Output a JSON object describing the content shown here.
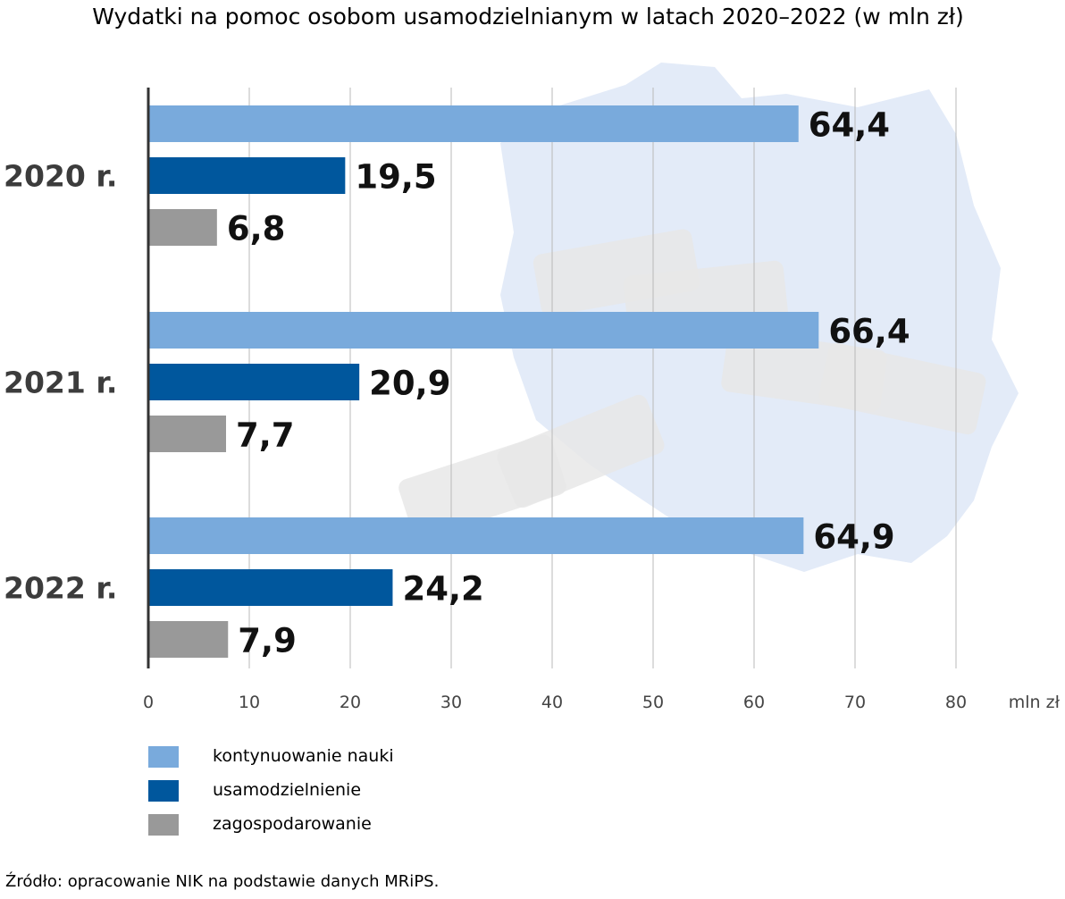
{
  "chart_data": {
    "type": "bar",
    "orientation": "horizontal",
    "title": "Wydatki na pomoc osobom usamodzielnianym w latach 2020–2022 (w mln zł)",
    "categories": [
      "2020 r.",
      "2021 r.",
      "2022 r."
    ],
    "series": [
      {
        "name": "kontynuowanie nauki",
        "values": [
          64.4,
          66.4,
          64.9
        ],
        "labels": [
          "64,4",
          "66,4",
          "64,9"
        ],
        "color": "#79aadc"
      },
      {
        "name": "usamodzielnienie",
        "values": [
          19.5,
          20.9,
          24.2
        ],
        "labels": [
          "19,5",
          "20,9",
          "24,2"
        ],
        "color": "#00579d"
      },
      {
        "name": "zagospodarowanie",
        "values": [
          6.8,
          7.7,
          7.9
        ],
        "labels": [
          "6,8",
          "7,7",
          "7,9"
        ],
        "color": "#999999"
      }
    ],
    "xlim": [
      0,
      80
    ],
    "xticks": [
      "0",
      "10",
      "20",
      "30",
      "40",
      "50",
      "60",
      "70",
      "80"
    ],
    "xunit": "mln zł",
    "grid": true,
    "legend_position": "bottom-left"
  },
  "source": "Źródło: opracowanie NIK na podstawie danych MRiPS.",
  "colors": {
    "background_map": "#e3ebf8",
    "background_money": "#e8e8e8"
  }
}
